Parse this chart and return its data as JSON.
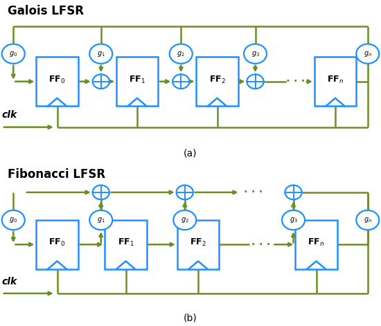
{
  "fig_width": 5.5,
  "fig_height": 4.71,
  "dpi": 100,
  "line_color": "#6B8E23",
  "box_color": "#1E90FF",
  "title_a": "Galois LFSR",
  "title_b": "Fibonacci LFSR",
  "label_a": "(a)",
  "label_b": "(b)",
  "line_width": 1.8,
  "mutation_scale": 8
}
